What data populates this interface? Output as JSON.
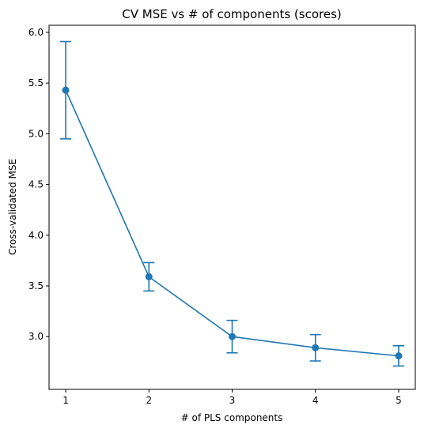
{
  "chart_data": {
    "type": "line",
    "title": "CV MSE vs # of components (scores)",
    "xlabel": "# of PLS components",
    "ylabel": "Cross-validated MSE",
    "x": [
      1,
      2,
      3,
      4,
      5
    ],
    "series": [
      {
        "values": [
          5.43,
          3.59,
          3.0,
          2.89,
          2.81
        ],
        "errors": [
          0.48,
          0.14,
          0.16,
          0.13,
          0.1
        ],
        "color": "#1f77b4",
        "marker": "circle"
      }
    ],
    "xlim": [
      0.8,
      5.2
    ],
    "ylim": [
      2.48,
      6.07
    ],
    "xticks": [
      1,
      2,
      3,
      4,
      5
    ],
    "xtick_labels": [
      "1",
      "2",
      "3",
      "4",
      "5"
    ],
    "yticks": [
      3.0,
      3.5,
      4.0,
      4.5,
      5.0,
      5.5,
      6.0
    ],
    "ytick_labels": [
      "3.0",
      "3.5",
      "4.0",
      "4.5",
      "5.0",
      "5.5",
      "6.0"
    ],
    "grid": false,
    "legend": "none"
  }
}
